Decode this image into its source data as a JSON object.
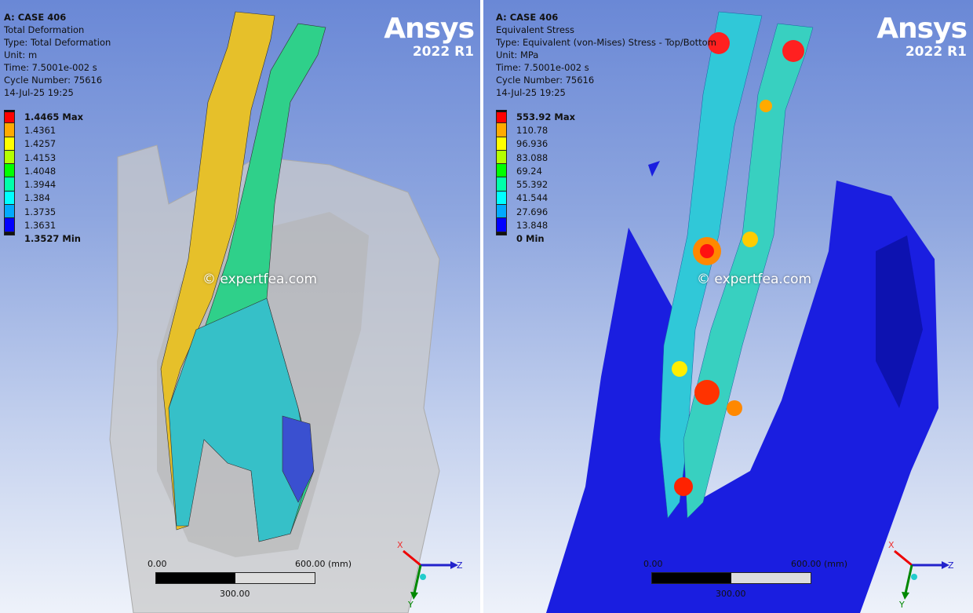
{
  "panels": [
    {
      "case": "A: CASE 406",
      "result": "Total Deformation",
      "type": "Type: Total Deformation",
      "unit": "Unit: m",
      "time": "Time: 7.5001e-002 s",
      "cycle": "Cycle Number: 75616",
      "date": "14-Jul-25 19:25",
      "legend": [
        {
          "label": "1.4465 Max",
          "color": "#ff0000",
          "bold": true
        },
        {
          "label": "1.4361",
          "color": "#ffaa00"
        },
        {
          "label": "1.4257",
          "color": "#ffff00"
        },
        {
          "label": "1.4153",
          "color": "#b4ff00"
        },
        {
          "label": "1.4048",
          "color": "#00ff00"
        },
        {
          "label": "1.3944",
          "color": "#00ffaa"
        },
        {
          "label": "1.384",
          "color": "#00ffff"
        },
        {
          "label": "1.3735",
          "color": "#00aaff"
        },
        {
          "label": "1.3631",
          "color": "#0000ff"
        },
        {
          "label": "1.3527 Min",
          "bold": true
        }
      ]
    },
    {
      "case": "A: CASE 406",
      "result": "Equivalent Stress",
      "type": "Type: Equivalent (von-Mises) Stress - Top/Bottom",
      "unit": "Unit: MPa",
      "time": "Time: 7.5001e-002 s",
      "cycle": "Cycle Number: 75616",
      "date": "14-Jul-25 19:25",
      "legend": [
        {
          "label": "553.92 Max",
          "color": "#ff0000",
          "bold": true
        },
        {
          "label": "110.78",
          "color": "#ffaa00"
        },
        {
          "label": "96.936",
          "color": "#ffff00"
        },
        {
          "label": "83.088",
          "color": "#b4ff00"
        },
        {
          "label": "69.24",
          "color": "#00ff00"
        },
        {
          "label": "55.392",
          "color": "#00ffaa"
        },
        {
          "label": "41.544",
          "color": "#00ffff"
        },
        {
          "label": "27.696",
          "color": "#00aaff"
        },
        {
          "label": "13.848",
          "color": "#0000ff"
        },
        {
          "label": "0 Min",
          "bold": true
        }
      ]
    }
  ],
  "logo": {
    "name": "Ansys",
    "version": "2022 R1"
  },
  "watermark": "© expertfea.com",
  "scale_bar": {
    "start": "0.00",
    "end": "600.00 (mm)",
    "mid": "300.00"
  },
  "triad": {
    "x": "X",
    "y": "Y",
    "z": "Z"
  }
}
